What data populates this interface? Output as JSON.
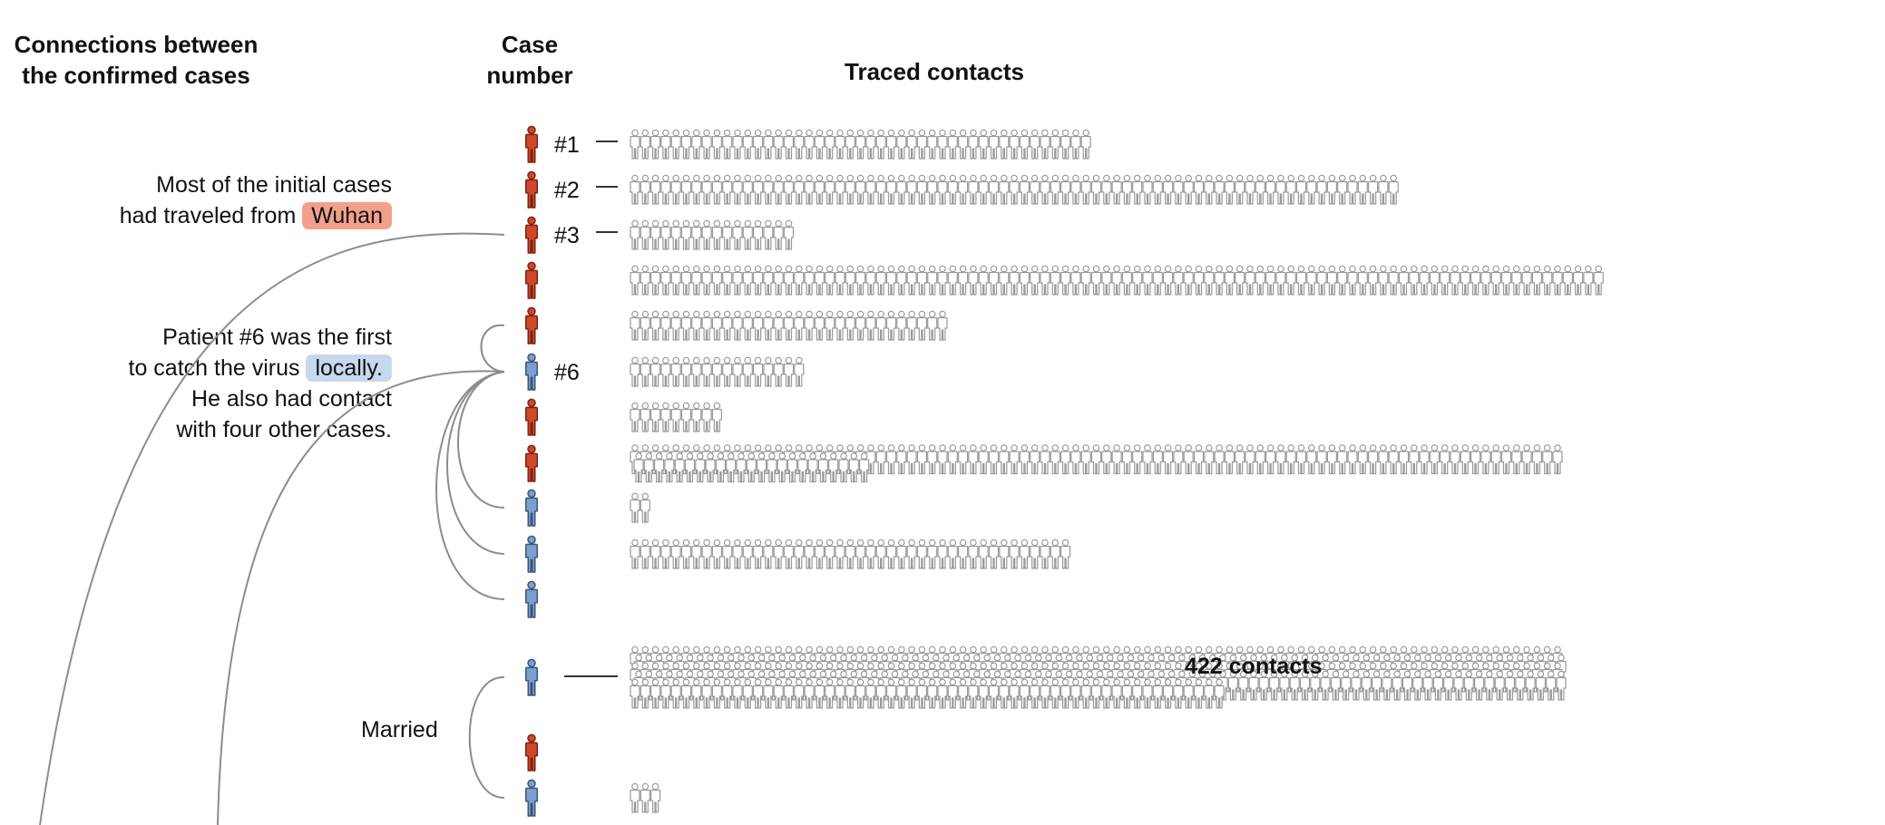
{
  "headers": {
    "connections_line1": "Connections between",
    "connections_line2": "the confirmed cases",
    "case_number_line1": "Case",
    "case_number_line2": "number",
    "traced_contacts": "Traced contacts"
  },
  "notes": {
    "wuhan_line1": "Most of the initial cases",
    "wuhan_line2_prefix": "had traveled from",
    "wuhan_highlight": "Wuhan",
    "local_line1": "Patient #6 was the first",
    "local_line2_prefix": "to catch the virus",
    "local_highlight": "locally.",
    "local_line3": "He also had contact",
    "local_line4": "with four other cases."
  },
  "married_label": "Married",
  "callout_text": "422 contacts",
  "colors": {
    "imported": "#d0482a",
    "imported_stroke": "#7a2412",
    "local": "#7b9fcf",
    "local_stroke": "#3d5577",
    "contact_stroke": "#9a9a9a",
    "connector": "#8c8c8c"
  },
  "legend_types": {
    "imported": "Wuhan",
    "local": "locally"
  },
  "cases": [
    {
      "label": "#1",
      "type": "imported",
      "contacts": 45
    },
    {
      "label": "#2",
      "type": "imported",
      "contacts": 75
    },
    {
      "label": "#3",
      "type": "imported",
      "contacts": 16
    },
    {
      "label": "",
      "type": "imported",
      "contacts": 95
    },
    {
      "label": "",
      "type": "imported",
      "contacts": 31
    },
    {
      "label": "#6",
      "type": "local",
      "contacts": 17
    },
    {
      "label": "",
      "type": "imported",
      "contacts": 9
    },
    {
      "label": "",
      "type": "imported",
      "contacts": 114
    },
    {
      "label": "",
      "type": "local",
      "contacts": 2
    },
    {
      "label": "",
      "type": "local",
      "contacts": 43
    },
    {
      "label": "",
      "type": "local",
      "contacts": 0
    },
    {
      "label": "",
      "type": "local",
      "contacts": 422
    },
    {
      "label": "",
      "type": "imported",
      "contacts": 0
    },
    {
      "label": "",
      "type": "local",
      "contacts": 3
    }
  ]
}
